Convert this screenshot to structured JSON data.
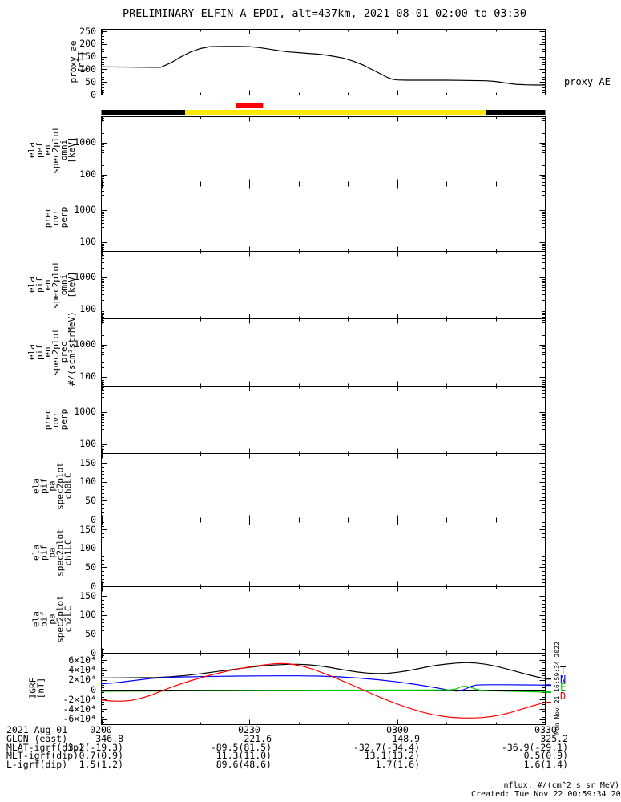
{
  "title": "PRELIMINARY ELFIN-A EPDI, alt=437km, 2021-08-01 02:00 to 03:30",
  "right_label": "proxy_AE",
  "vertical_timestamp": "Mon Nov 21 16:59:34 2022",
  "footer": {
    "nflux_note": "nflux: #/(cm^2 s sr MeV)",
    "created": "Created: Tue Nov 22 00:59:34 2022"
  },
  "legend": {
    "letters": [
      {
        "label": "T",
        "color": "#000000"
      },
      {
        "label": "N",
        "color": "#0000ff"
      },
      {
        "label": "E",
        "color": "#00cc00"
      },
      {
        "label": "D",
        "color": "#ff0000"
      }
    ]
  },
  "panels": [
    {
      "id": "proxy_ae",
      "label": "proxy_ae\n[nT]",
      "yticks": [
        "250",
        "200",
        "150",
        "100",
        "50",
        "0"
      ]
    },
    {
      "id": "ela_pef_en_spec2plot_omni",
      "label": "ela\npef\nen\nspec2plot\nomni\n[keV]",
      "yticks": [
        "1000",
        "100"
      ]
    },
    {
      "id": "prec_ovr_perp_1",
      "label": "prec\novr\nperp",
      "yticks": [
        "1000",
        "100"
      ]
    },
    {
      "id": "ela_pif_en_spec2plot_omni",
      "label": "ela\npif\nen\nspec2plot\nomni\n[keV]",
      "yticks": [
        "1000",
        "100"
      ]
    },
    {
      "id": "ela_pif_en_spec2plot_prec",
      "label": "ela\npif\nen\nspec2plot\nprec\n#/(scm²strMeV)",
      "yticks": [
        "1000",
        "100"
      ]
    },
    {
      "id": "prec_ovr_perp_2",
      "label": "prec\novr\nperp",
      "yticks": [
        "1000",
        "100"
      ]
    },
    {
      "id": "ela_pif_pa_spec2plot_ch0LC",
      "label": "ela\npif\npa\nspec2plot\nch0LC",
      "yticks": [
        "150",
        "100",
        "50",
        "0"
      ]
    },
    {
      "id": "ela_pif_pa_spec2plot_ch1LC",
      "label": "ela\npif\npa\nspec2plot\nch1LC",
      "yticks": [
        "150",
        "100",
        "50",
        "0"
      ]
    },
    {
      "id": "ela_pif_pa_spec2plot_ch2LC",
      "label": "ela\npif\npa\nspec2plot\nch2LC",
      "yticks": [
        "150",
        "100",
        "50",
        "0"
      ]
    },
    {
      "id": "igrf",
      "label": "IGRF\n[nT]",
      "yticks": [
        "6×10⁴",
        "4×10⁴",
        "2×10⁴",
        "0",
        "-2×10⁴",
        "-4×10⁴",
        "-6×10⁴"
      ]
    }
  ],
  "bottom_axis": {
    "date_label": "2021 Aug 01",
    "ticks": [
      "0200",
      "0230",
      "0300",
      "0330"
    ],
    "rows": [
      {
        "label": "GLON (east)",
        "values": [
          "346.8",
          "221.6",
          "148.9",
          "325.2"
        ]
      },
      {
        "label": "MLAT-igrf(dip)",
        "values": [
          "3.2(-19.3)",
          "-89.5(81.5)",
          "-32.7(-34.4)",
          "-36.9(-29.1)"
        ]
      },
      {
        "label": "MLT-igrf(dip)",
        "values": [
          "0.7(0.9)",
          "11.3(11.0)",
          "13.1(13.2)",
          "0.5(0.9)"
        ]
      },
      {
        "label": "L-igrf(dip)",
        "values": [
          "1.5(1.2)",
          "89.6(48.6)",
          "1.7(1.6)",
          "1.6(1.4)"
        ]
      }
    ]
  },
  "chart_data": [
    {
      "type": "line",
      "id": "proxy_ae",
      "ylabel": "proxy_ae [nT]",
      "x_unit": "minutes after 02:00 UT",
      "xlim": [
        0,
        90
      ],
      "ylim": [
        0,
        260
      ],
      "yticks": [
        0,
        50,
        100,
        150,
        200,
        250
      ],
      "grid": false,
      "series": [
        {
          "name": "proxy_AE",
          "color": "#000000",
          "points": [
            [
              0,
              110
            ],
            [
              6,
              109
            ],
            [
              10,
              108
            ],
            [
              12,
              108
            ],
            [
              14,
              125
            ],
            [
              16,
              148
            ],
            [
              18,
              168
            ],
            [
              20,
              182
            ],
            [
              22,
              190
            ],
            [
              25,
              191
            ],
            [
              28,
              191
            ],
            [
              30,
              190
            ],
            [
              32,
              186
            ],
            [
              34,
              180
            ],
            [
              36,
              174
            ],
            [
              38,
              169
            ],
            [
              40,
              166
            ],
            [
              42,
              163
            ],
            [
              44,
              160
            ],
            [
              45,
              158
            ],
            [
              47,
              152
            ],
            [
              49,
              145
            ],
            [
              51,
              133
            ],
            [
              53,
              118
            ],
            [
              55,
              98
            ],
            [
              57,
              78
            ],
            [
              58,
              68
            ],
            [
              59,
              61
            ],
            [
              60,
              58
            ],
            [
              62,
              57
            ],
            [
              70,
              57
            ],
            [
              74,
              56
            ],
            [
              78,
              55
            ],
            [
              80,
              52
            ],
            [
              82,
              46
            ],
            [
              84,
              41
            ],
            [
              86,
              39
            ],
            [
              88,
              38
            ],
            [
              90,
              38
            ]
          ]
        }
      ]
    },
    {
      "type": "timeline-bar",
      "id": "status_bar",
      "x_unit": "minutes after 02:00 UT",
      "segments": [
        {
          "color": "#000000",
          "t": [
            0,
            17
          ]
        },
        {
          "color": "#ffe800",
          "t": [
            17,
            78
          ]
        },
        {
          "color": "#000000",
          "t": [
            78,
            90
          ]
        }
      ],
      "marker": {
        "color": "#ff0000",
        "t": [
          27.2,
          32.8
        ]
      }
    },
    {
      "type": "spectrogram",
      "id": "ela_pef_en_spec2plot_omni",
      "yscale": "log",
      "yticks": [
        100,
        1000
      ],
      "ylim": [
        53,
        6600
      ],
      "empty": true
    },
    {
      "type": "spectrogram",
      "id": "prec_ovr_perp_1",
      "yscale": "log",
      "yticks": [
        100,
        1000
      ],
      "ylim": [
        53,
        6600
      ],
      "empty": true
    },
    {
      "type": "spectrogram",
      "id": "ela_pif_en_spec2plot_omni",
      "yscale": "log",
      "yticks": [
        100,
        1000
      ],
      "ylim": [
        53,
        6600
      ],
      "empty": true
    },
    {
      "type": "spectrogram",
      "id": "ela_pif_en_spec2plot_prec",
      "yscale": "log",
      "yticks": [
        100,
        1000
      ],
      "ylim": [
        53,
        6600
      ],
      "empty": true
    },
    {
      "type": "spectrogram",
      "id": "prec_ovr_perp_2",
      "yscale": "log",
      "yticks": [
        100,
        1000
      ],
      "ylim": [
        53,
        6600
      ],
      "empty": true
    },
    {
      "type": "line",
      "id": "ela_pif_pa_spec2plot_ch0LC",
      "ylim": [
        0,
        176
      ],
      "yticks": [
        0,
        50,
        100,
        150
      ],
      "empty": true
    },
    {
      "type": "line",
      "id": "ela_pif_pa_spec2plot_ch1LC",
      "ylim": [
        0,
        176
      ],
      "yticks": [
        0,
        50,
        100,
        150
      ],
      "empty": true
    },
    {
      "type": "line",
      "id": "ela_pif_pa_spec2plot_ch2LC",
      "ylim": [
        0,
        176
      ],
      "yticks": [
        0,
        50,
        100,
        150
      ],
      "empty": true
    },
    {
      "type": "line",
      "id": "igrf",
      "ylabel": "IGRF [nT]",
      "x_unit": "minutes after 02:00 UT",
      "xlim": [
        0,
        90
      ],
      "ylim": [
        -70000,
        72000
      ],
      "yticks": [
        -60000,
        -40000,
        -20000,
        0,
        20000,
        40000,
        60000
      ],
      "zero_line": true,
      "legend_position": "right",
      "series": [
        {
          "name": "T",
          "color": "#000000",
          "points": [
            [
              0,
              24000
            ],
            [
              4,
              24200
            ],
            [
              8,
              24600
            ],
            [
              11,
              25000
            ],
            [
              14,
              26500
            ],
            [
              17,
              29000
            ],
            [
              20,
              32500
            ],
            [
              23,
              36500
            ],
            [
              26,
              40500
            ],
            [
              29,
              44500
            ],
            [
              32,
              48000
            ],
            [
              35,
              50500
            ],
            [
              38,
              52000
            ],
            [
              40,
              52000
            ],
            [
              42,
              51000
            ],
            [
              44,
              49000
            ],
            [
              46,
              46000
            ],
            [
              48,
              42500
            ],
            [
              50,
              39000
            ],
            [
              52,
              36000
            ],
            [
              54,
              34000
            ],
            [
              56,
              33000
            ],
            [
              58,
              33500
            ],
            [
              60,
              35500
            ],
            [
              62,
              38500
            ],
            [
              64,
              42500
            ],
            [
              66,
              46500
            ],
            [
              68,
              50000
            ],
            [
              70,
              52500
            ],
            [
              72,
              54500
            ],
            [
              74,
              55500
            ],
            [
              76,
              54500
            ],
            [
              78,
              52000
            ],
            [
              80,
              48000
            ],
            [
              82,
              43000
            ],
            [
              84,
              37500
            ],
            [
              86,
              32000
            ],
            [
              88,
              27000
            ],
            [
              90,
              22500
            ]
          ]
        },
        {
          "name": "N",
          "color": "#0000ff",
          "points": [
            [
              0,
              12000
            ],
            [
              2,
              13500
            ],
            [
              4,
              15500
            ],
            [
              6,
              18000
            ],
            [
              8,
              20500
            ],
            [
              10,
              23000
            ],
            [
              12,
              24500
            ],
            [
              14,
              25500
            ],
            [
              17,
              26200
            ],
            [
              20,
              26800
            ],
            [
              24,
              27400
            ],
            [
              28,
              27800
            ],
            [
              32,
              28200
            ],
            [
              36,
              28400
            ],
            [
              40,
              28300
            ],
            [
              44,
              27800
            ],
            [
              48,
              26400
            ],
            [
              52,
              24000
            ],
            [
              56,
              20500
            ],
            [
              60,
              16000
            ],
            [
              64,
              10500
            ],
            [
              67,
              5500
            ],
            [
              69,
              2000
            ],
            [
              70,
              0
            ],
            [
              71,
              -2000
            ],
            [
              72,
              -2800
            ],
            [
              73,
              -1500
            ],
            [
              74,
              2500
            ],
            [
              75,
              7000
            ],
            [
              76,
              9500
            ],
            [
              78,
              10200
            ],
            [
              82,
              10200
            ],
            [
              86,
              9800
            ],
            [
              90,
              9500
            ]
          ]
        },
        {
          "name": "E",
          "color": "#00cc00",
          "points": [
            [
              0,
              -3300
            ],
            [
              6,
              -3000
            ],
            [
              12,
              -2600
            ],
            [
              18,
              -2200
            ],
            [
              24,
              -1900
            ],
            [
              30,
              -1600
            ],
            [
              36,
              -1300
            ],
            [
              42,
              -1100
            ],
            [
              48,
              -900
            ],
            [
              54,
              -800
            ],
            [
              58,
              -700
            ],
            [
              62,
              -600
            ],
            [
              66,
              -500
            ],
            [
              69,
              -300
            ],
            [
              71,
              0
            ],
            [
              72,
              2000
            ],
            [
              73,
              6500
            ],
            [
              74,
              7000
            ],
            [
              75,
              4500
            ],
            [
              76,
              1000
            ],
            [
              77,
              -1200
            ],
            [
              79,
              -2200
            ],
            [
              82,
              -3000
            ],
            [
              85,
              -3600
            ],
            [
              88,
              -4300
            ],
            [
              90,
              -5000
            ]
          ]
        },
        {
          "name": "D",
          "color": "#ff0000",
          "points": [
            [
              0,
              -21000
            ],
            [
              2,
              -23000
            ],
            [
              4,
              -23500
            ],
            [
              6,
              -22000
            ],
            [
              8,
              -17500
            ],
            [
              10,
              -11500
            ],
            [
              11,
              -7500
            ],
            [
              12,
              -3500
            ],
            [
              13,
              500
            ],
            [
              14,
              4500
            ],
            [
              16,
              11500
            ],
            [
              18,
              18000
            ],
            [
              20,
              24000
            ],
            [
              22,
              29500
            ],
            [
              24,
              34500
            ],
            [
              26,
              39000
            ],
            [
              28,
              43000
            ],
            [
              30,
              46500
            ],
            [
              32,
              49500
            ],
            [
              34,
              52000
            ],
            [
              35,
              53000
            ],
            [
              36,
              53500
            ],
            [
              37,
              53500
            ],
            [
              38,
              53000
            ],
            [
              39,
              51500
            ],
            [
              41,
              47500
            ],
            [
              43,
              41500
            ],
            [
              45,
              34000
            ],
            [
              47,
              26000
            ],
            [
              49,
              17500
            ],
            [
              51,
              9000
            ],
            [
              52,
              4500
            ],
            [
              53,
              0
            ],
            [
              55,
              -9000
            ],
            [
              57,
              -17500
            ],
            [
              59,
              -25500
            ],
            [
              61,
              -33000
            ],
            [
              63,
              -39500
            ],
            [
              65,
              -45500
            ],
            [
              67,
              -50500
            ],
            [
              69,
              -54000
            ],
            [
              71,
              -56500
            ],
            [
              73,
              -57500
            ],
            [
              75,
              -57800
            ],
            [
              77,
              -57000
            ],
            [
              79,
              -55000
            ],
            [
              81,
              -51500
            ],
            [
              83,
              -46500
            ],
            [
              85,
              -40500
            ],
            [
              87,
              -34500
            ],
            [
              89,
              -28500
            ],
            [
              90,
              -26000
            ]
          ]
        }
      ]
    }
  ]
}
